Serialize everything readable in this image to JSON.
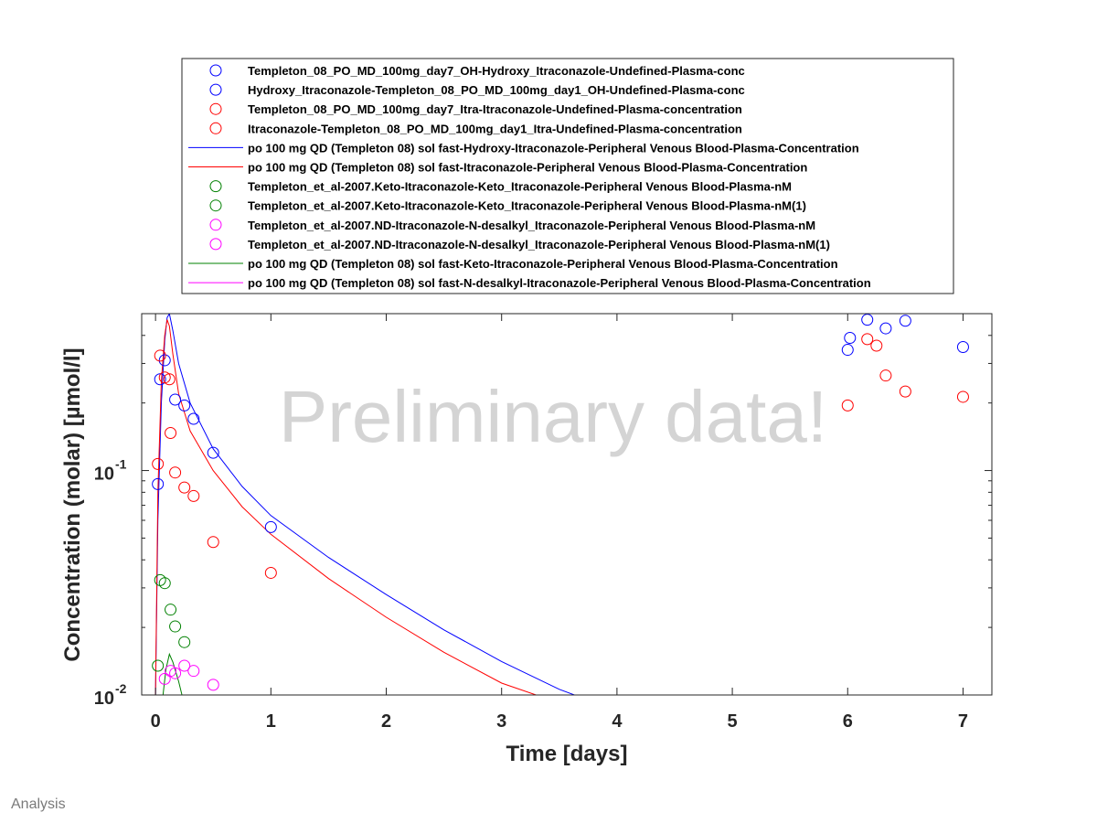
{
  "footer": "Analysis",
  "chart_data": {
    "type": "scatter",
    "title": "",
    "xlabel": "Time [days]",
    "ylabel": "Concentration (molar) [µmol/l]",
    "watermark": "Preliminary data!",
    "xlim": [
      -0.12,
      7.25
    ],
    "ylim": [
      0.01,
      0.5
    ],
    "y_scale": "log",
    "grid": false,
    "legend_position": "top",
    "x_ticks": [
      {
        "value": 0,
        "label": "0"
      },
      {
        "value": 1,
        "label": "1"
      },
      {
        "value": 2,
        "label": "2"
      },
      {
        "value": 3,
        "label": "3"
      },
      {
        "value": 4,
        "label": "4"
      },
      {
        "value": 5,
        "label": "5"
      },
      {
        "value": 6,
        "label": "6"
      },
      {
        "value": 7,
        "label": "7"
      }
    ],
    "y_ticks": [
      {
        "value": 0.01,
        "base": "10",
        "exp": "-2"
      },
      {
        "value": 0.1,
        "base": "10",
        "exp": "-1"
      }
    ],
    "series": [
      {
        "name": "Templeton_08_PO_MD_100mg_day7_OH-Hydroxy_Itraconazole-Undefined-Plasma-conc",
        "kind": "marker",
        "color": "#0000ff",
        "x": [
          6.0,
          6.02,
          6.17,
          6.33,
          6.5,
          7.0
        ],
        "y": [
          0.345,
          0.39,
          0.47,
          0.43,
          0.465,
          0.355
        ]
      },
      {
        "name": "Hydroxy_Itraconazole-Templeton_08_PO_MD_100mg_day1_OH-Undefined-Plasma-conc",
        "kind": "marker",
        "color": "#0000ff",
        "x": [
          0.02,
          0.04,
          0.08,
          0.17,
          0.25,
          0.33,
          0.5,
          1.0
        ],
        "y": [
          0.087,
          0.255,
          0.31,
          0.207,
          0.195,
          0.17,
          0.12,
          0.056
        ]
      },
      {
        "name": "Templeton_08_PO_MD_100mg_day7_Itra-Itraconazole-Undefined-Plasma-concentration",
        "kind": "marker",
        "color": "#ff0000",
        "x": [
          6.0,
          6.17,
          6.25,
          6.33,
          6.5,
          7.0
        ],
        "y": [
          0.195,
          0.385,
          0.36,
          0.265,
          0.225,
          0.213
        ]
      },
      {
        "name": "Itraconazole-Templeton_08_PO_MD_100mg_day1_Itra-Undefined-Plasma-concentration",
        "kind": "marker",
        "color": "#ff0000",
        "x": [
          0.02,
          0.04,
          0.08,
          0.12,
          0.13,
          0.17,
          0.25,
          0.33,
          0.5,
          1.0
        ],
        "y": [
          0.107,
          0.325,
          0.26,
          0.255,
          0.147,
          0.098,
          0.084,
          0.077,
          0.048,
          0.035
        ]
      },
      {
        "name": "po 100 mg QD (Templeton 08) sol fast-Hydroxy-Itraconazole-Peripheral Venous Blood-Plasma-Concentration",
        "kind": "line",
        "color": "#0000ff",
        "x": [
          0.0,
          0.02,
          0.05,
          0.08,
          0.1,
          0.12,
          0.15,
          0.2,
          0.3,
          0.5,
          0.75,
          1.0,
          1.5,
          2.0,
          2.5,
          3.0,
          3.5,
          3.7
        ],
        "y": [
          0.01,
          0.06,
          0.2,
          0.38,
          0.48,
          0.5,
          0.42,
          0.3,
          0.2,
          0.125,
          0.085,
          0.063,
          0.041,
          0.028,
          0.0195,
          0.0141,
          0.0106,
          0.0097
        ]
      },
      {
        "name": "po 100 mg QD (Templeton 08) sol fast-Itraconazole-Peripheral Venous Blood-Plasma-Concentration",
        "kind": "line",
        "color": "#ff0000",
        "x": [
          0.0,
          0.02,
          0.05,
          0.08,
          0.1,
          0.12,
          0.15,
          0.2,
          0.3,
          0.5,
          0.75,
          1.0,
          1.5,
          2.0,
          2.5,
          3.0,
          3.4
        ],
        "y": [
          0.01,
          0.08,
          0.25,
          0.4,
          0.47,
          0.44,
          0.33,
          0.22,
          0.15,
          0.1,
          0.069,
          0.052,
          0.033,
          0.0222,
          0.0155,
          0.0113,
          0.0096
        ]
      },
      {
        "name": "Templeton_et_al-2007.Keto-Itraconazole-Keto_Itraconazole-Peripheral Venous Blood-Plasma-nM",
        "kind": "marker",
        "color": "#008000",
        "x": [
          0.02,
          0.04,
          0.08,
          0.13,
          0.17,
          0.25
        ],
        "y": [
          0.0135,
          0.0325,
          0.0315,
          0.024,
          0.0202,
          0.0172
        ]
      },
      {
        "name": "Templeton_et_al-2007.Keto-Itraconazole-Keto_Itraconazole-Peripheral Venous Blood-Plasma-nM(1)",
        "kind": "marker",
        "color": "#008000",
        "x": [],
        "y": []
      },
      {
        "name": "Templeton_et_al-2007.ND-Itraconazole-N-desalkyl_Itraconazole-Peripheral Venous Blood-Plasma-nM",
        "kind": "marker",
        "color": "#ff00ff",
        "x": [
          0.08,
          0.13,
          0.17,
          0.25,
          0.33,
          0.5
        ],
        "y": [
          0.0118,
          0.0128,
          0.0125,
          0.0135,
          0.0128,
          0.0111
        ]
      },
      {
        "name": "Templeton_et_al-2007.ND-Itraconazole-N-desalkyl_Itraconazole-Peripheral Venous Blood-Plasma-nM(1)",
        "kind": "marker",
        "color": "#ff00ff",
        "x": [],
        "y": []
      },
      {
        "name": "po 100 mg QD (Templeton 08) sol fast-Keto-Itraconazole-Peripheral Venous Blood-Plasma-Concentration",
        "kind": "line",
        "color": "#008000",
        "x": [
          0.06,
          0.09,
          0.12,
          0.15,
          0.2,
          0.24
        ],
        "y": [
          0.0095,
          0.013,
          0.0152,
          0.014,
          0.0115,
          0.0095
        ]
      },
      {
        "name": "po 100 mg QD (Templeton 08) sol fast-N-desalkyl-Itraconazole-Peripheral Venous Blood-Plasma-Concentration",
        "kind": "line",
        "color": "#ff00ff",
        "x": [],
        "y": []
      }
    ]
  }
}
